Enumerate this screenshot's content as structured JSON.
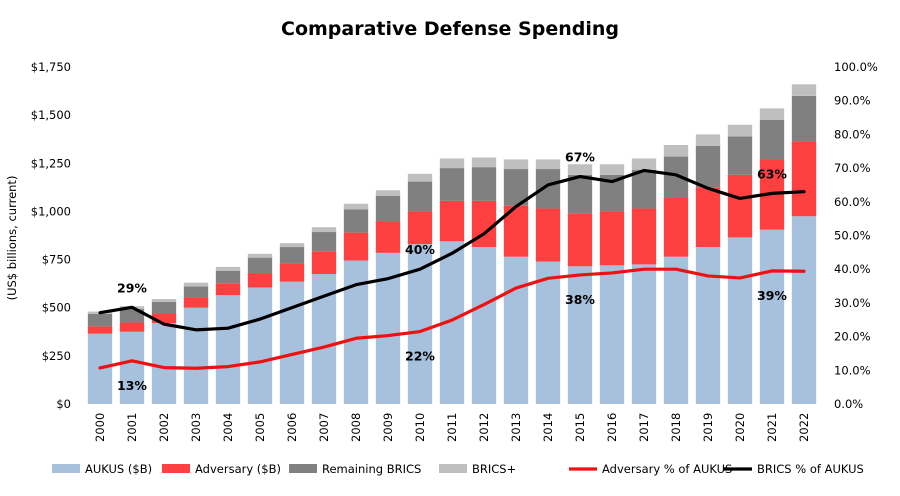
{
  "title": "Comparative Defense Spending",
  "chart_data": {
    "type": "bar",
    "stacked": true,
    "title": "Comparative Defense Spending",
    "ylabel": "(US$ billions, current)",
    "y2label": "",
    "categories": [
      "2000",
      "2001",
      "2002",
      "2003",
      "2004",
      "2005",
      "2006",
      "2007",
      "2008",
      "2009",
      "2010",
      "2011",
      "2012",
      "2013",
      "2014",
      "2015",
      "2016",
      "2017",
      "2018",
      "2019",
      "2020",
      "2021",
      "2022"
    ],
    "ylim": [
      0,
      1750
    ],
    "y2lim": [
      0,
      100
    ],
    "yticks": [
      "$0",
      "$250",
      "$500",
      "$750",
      "$1,000",
      "$1,250",
      "$1,500",
      "$1,750"
    ],
    "y2ticks": [
      "0.0%",
      "10.0%",
      "20.0%",
      "30.0%",
      "40.0%",
      "50.0%",
      "60.0%",
      "70.0%",
      "80.0%",
      "90.0%",
      "100.0%"
    ],
    "grid": false,
    "legend_position": "bottom",
    "series": [
      {
        "name": "AUKUS ($B)",
        "kind": "bar",
        "axis": "left",
        "color": "#a7c0dc",
        "values": [
          365,
          375,
          420,
          500,
          565,
          605,
          635,
          675,
          745,
          785,
          830,
          845,
          815,
          765,
          740,
          715,
          720,
          725,
          765,
          815,
          865,
          905,
          975
        ]
      },
      {
        "name": "Adversary ($B)",
        "kind": "bar",
        "axis": "left",
        "color": "#ff4040",
        "values": [
          38,
          48,
          50,
          55,
          62,
          75,
          95,
          118,
          145,
          165,
          170,
          210,
          240,
          265,
          275,
          275,
          280,
          290,
          305,
          310,
          325,
          365,
          390
        ]
      },
      {
        "name": "Remaining BRICS",
        "kind": "bar",
        "axis": "left",
        "color": "#808080",
        "values": [
          65,
          70,
          60,
          55,
          65,
          80,
          85,
          100,
          120,
          130,
          155,
          170,
          175,
          190,
          205,
          200,
          190,
          200,
          215,
          215,
          200,
          205,
          235
        ]
      },
      {
        "name": "BRICS+",
        "kind": "bar",
        "axis": "left",
        "color": "#bfbfbf",
        "values": [
          12,
          15,
          15,
          20,
          20,
          20,
          20,
          25,
          30,
          30,
          40,
          50,
          50,
          50,
          50,
          55,
          55,
          60,
          60,
          60,
          60,
          60,
          60
        ]
      },
      {
        "name": "Adversary % of AUKUS",
        "kind": "line",
        "axis": "right",
        "color": "#ee1111",
        "values": [
          10.7,
          12.8,
          10.8,
          10.6,
          11.1,
          12.5,
          14.7,
          16.9,
          19.5,
          20.3,
          21.5,
          24.9,
          29.5,
          34.4,
          37.3,
          38.3,
          38.9,
          40.0,
          40.0,
          38.0,
          37.4,
          39.5,
          39.4
        ]
      },
      {
        "name": "BRICS % of AUKUS",
        "kind": "line",
        "axis": "right",
        "color": "#000000",
        "values": [
          27.1,
          28.7,
          23.7,
          22.0,
          22.5,
          25.2,
          28.6,
          32.0,
          35.4,
          37.2,
          40.0,
          44.7,
          50.5,
          58.6,
          65.0,
          67.5,
          66.0,
          69.3,
          68.0,
          64.0,
          61.0,
          62.5,
          63.0
        ]
      }
    ],
    "annotations": [
      {
        "text": "29%",
        "series": "BRICS % of AUKUS",
        "category": "2001"
      },
      {
        "text": "13%",
        "series": "Adversary % of AUKUS",
        "category": "2001"
      },
      {
        "text": "40%",
        "series": "BRICS % of AUKUS",
        "category": "2010"
      },
      {
        "text": "22%",
        "series": "Adversary % of AUKUS",
        "category": "2010"
      },
      {
        "text": "67%",
        "series": "BRICS % of AUKUS",
        "category": "2015"
      },
      {
        "text": "38%",
        "series": "Adversary % of AUKUS",
        "category": "2015"
      },
      {
        "text": "63%",
        "series": "BRICS % of AUKUS",
        "category": "2021"
      },
      {
        "text": "39%",
        "series": "Adversary % of AUKUS",
        "category": "2021"
      }
    ]
  }
}
